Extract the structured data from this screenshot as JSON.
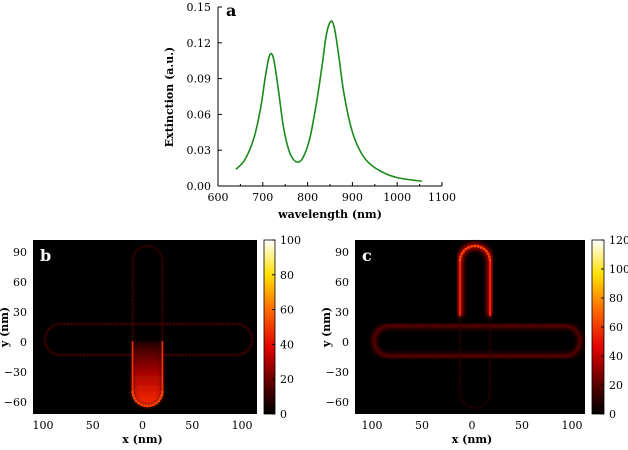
{
  "chart_data": [
    {
      "type": "line",
      "panel_label": "a",
      "xlabel": "wavelength (nm)",
      "ylabel": "Extinction (a.u.)",
      "xlim": [
        600,
        1100
      ],
      "ylim": [
        0,
        0.15
      ],
      "xticks": [
        "600",
        "700",
        "800",
        "900",
        "1000",
        "1100"
      ],
      "yticks": [
        "0.00",
        "0.03",
        "0.06",
        "0.09",
        "0.12",
        "0.15"
      ],
      "line_color": "#1a8a1a",
      "x": [
        640,
        660,
        680,
        695,
        705,
        712,
        718,
        725,
        735,
        745,
        755,
        765,
        778,
        790,
        805,
        820,
        832,
        842,
        852,
        860,
        870,
        880,
        895,
        910,
        930,
        960,
        1000,
        1055
      ],
      "y": [
        0.014,
        0.022,
        0.04,
        0.065,
        0.09,
        0.105,
        0.111,
        0.105,
        0.08,
        0.052,
        0.034,
        0.024,
        0.02,
        0.024,
        0.04,
        0.07,
        0.1,
        0.127,
        0.138,
        0.132,
        0.108,
        0.08,
        0.052,
        0.035,
        0.022,
        0.013,
        0.007,
        0.004
      ]
    },
    {
      "type": "heatmap",
      "panel_label": "b",
      "xlabel": "x (nm)",
      "ylabel": "y (nm)",
      "xticks": [
        "100",
        "50",
        "0",
        "50",
        "100"
      ],
      "yticks": [
        "90",
        "60",
        "30",
        "0",
        "−30",
        "−60"
      ],
      "colorbar_ticks": [
        "0",
        "20",
        "40",
        "60",
        "80",
        "100"
      ],
      "colorbar_range": [
        0,
        100
      ],
      "hotspot": "bottom arm end"
    },
    {
      "type": "heatmap",
      "panel_label": "c",
      "xlabel": "x (nm)",
      "ylabel": "y (nm)",
      "xticks": [
        "100",
        "50",
        "0",
        "50",
        "100"
      ],
      "yticks": [
        "90",
        "60",
        "30",
        "0",
        "−30",
        "−60"
      ],
      "colorbar_ticks": [
        "0",
        "20",
        "40",
        "60",
        "80",
        "100",
        "120"
      ],
      "colorbar_range": [
        0,
        120
      ],
      "hotspot": "top arm end"
    }
  ]
}
